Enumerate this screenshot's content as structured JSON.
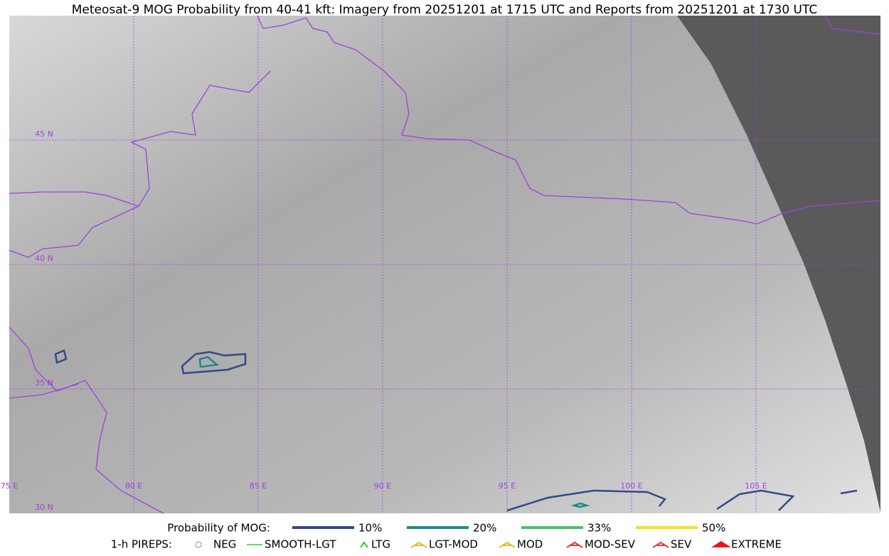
{
  "title": "Meteosat-9 MOG Probability from 40-41 kft: Imagery from 20251201 at 1715 UTC and Reports from 20251201 at 1730 UTC",
  "map": {
    "lat_labels": [
      "45 N",
      "40 N",
      "35 N",
      "30 N"
    ],
    "lon_labels": [
      "75 E",
      "80 E",
      "85 E",
      "90 E",
      "95 E",
      "100 E",
      "105 E"
    ]
  },
  "legend": {
    "mog_title": "Probability of MOG:",
    "mog_levels": [
      {
        "label": "10%",
        "color": "#34498a"
      },
      {
        "label": "20%",
        "color": "#1f8a87"
      },
      {
        "label": "33%",
        "color": "#4cc260"
      },
      {
        "label": "50%",
        "color": "#f5e11b"
      }
    ],
    "pireps_title": "1-h PIREPS:",
    "pireps": [
      {
        "label": "NEG",
        "color": "#aab0f0"
      },
      {
        "label": "SMOOTH-LGT",
        "color": "#33cc33"
      },
      {
        "label": "LTG",
        "color": "#11cc11"
      },
      {
        "label": "LGT-MOD",
        "color": "#f0b020"
      },
      {
        "label": "MOD",
        "color": "#f0b020"
      },
      {
        "label": "MOD-SEV",
        "color": "#ee2222"
      },
      {
        "label": "SEV",
        "color": "#ee2222"
      },
      {
        "label": "EXTREME",
        "color": "#ee1111"
      }
    ]
  }
}
